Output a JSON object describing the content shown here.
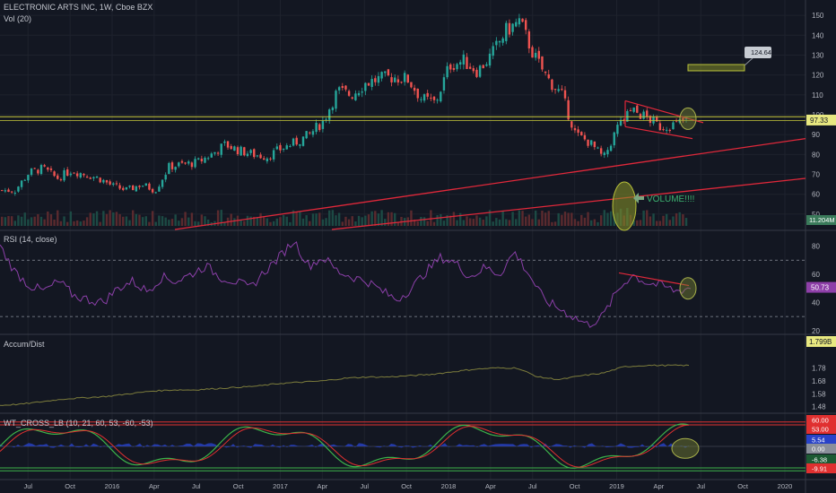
{
  "header": {
    "symbol_line": "ELECTRONIC ARTS INC, 1W, Cboe BZX",
    "volume_label": "Vol (20)"
  },
  "annotations": {
    "price_callout": "124.64",
    "volume_note": "VOLUME!!!!"
  },
  "panes": {
    "rsi_title": "RSI (14, close)",
    "ad_title": "Accum/Dist",
    "wt_title": "WT_CROSS_LB (10, 21, 60, 53, -60, -53)"
  },
  "colors": {
    "background": "#131722",
    "bull": "#26a69a",
    "bear": "#ef5350",
    "trendline": "#e0283a",
    "yellow_line": "#c8c83a",
    "rsi_line": "#8b3fa8",
    "ad_line": "#7d7d3c",
    "wt_green": "#3cb34a",
    "wt_red": "#e03030",
    "wt_blue": "#2842c8",
    "highlight": "#6f7a2f"
  },
  "chart_data": [
    {
      "type": "candlestick",
      "title": "ELECTRONIC ARTS INC, 1W, Cboe BZX",
      "ylim": [
        45,
        155
      ],
      "y_ticks": [
        150,
        140,
        130,
        120,
        110,
        100,
        90,
        80,
        70,
        60,
        50
      ],
      "last_price": "97.33",
      "volume_label_value": "11.204M",
      "x_ticks": [
        "Jul",
        "Oct",
        "2016",
        "Apr",
        "Jul",
        "Oct",
        "2017",
        "Apr",
        "Jul",
        "Oct",
        "2018",
        "Apr",
        "Jul",
        "Oct",
        "2019",
        "Apr",
        "Jul",
        "Oct",
        "2020"
      ],
      "close_series": [
        {
          "x": "2015-06",
          "y": 62
        },
        {
          "x": "2015-07",
          "y": 71
        },
        {
          "x": "2015-08",
          "y": 73
        },
        {
          "x": "2015-09",
          "y": 68
        },
        {
          "x": "2015-10",
          "y": 72
        },
        {
          "x": "2015-11",
          "y": 70
        },
        {
          "x": "2015-12",
          "y": 68
        },
        {
          "x": "2016-01",
          "y": 64
        },
        {
          "x": "2016-02",
          "y": 62
        },
        {
          "x": "2016-03",
          "y": 65
        },
        {
          "x": "2016-04",
          "y": 62
        },
        {
          "x": "2016-05",
          "y": 74
        },
        {
          "x": "2016-06",
          "y": 75
        },
        {
          "x": "2016-07",
          "y": 76
        },
        {
          "x": "2016-08",
          "y": 80
        },
        {
          "x": "2016-09",
          "y": 85
        },
        {
          "x": "2016-10",
          "y": 82
        },
        {
          "x": "2016-11",
          "y": 80
        },
        {
          "x": "2016-12",
          "y": 79
        },
        {
          "x": "2017-01",
          "y": 83
        },
        {
          "x": "2017-02",
          "y": 86
        },
        {
          "x": "2017-03",
          "y": 90
        },
        {
          "x": "2017-04",
          "y": 97
        },
        {
          "x": "2017-05",
          "y": 112
        },
        {
          "x": "2017-06",
          "y": 110
        },
        {
          "x": "2017-07",
          "y": 116
        },
        {
          "x": "2017-08",
          "y": 118
        },
        {
          "x": "2017-09",
          "y": 119
        },
        {
          "x": "2017-10",
          "y": 118
        },
        {
          "x": "2017-11",
          "y": 108
        },
        {
          "x": "2017-12",
          "y": 106
        },
        {
          "x": "2018-01",
          "y": 125
        },
        {
          "x": "2018-02",
          "y": 127
        },
        {
          "x": "2018-03",
          "y": 122
        },
        {
          "x": "2018-04",
          "y": 130
        },
        {
          "x": "2018-05",
          "y": 142
        },
        {
          "x": "2018-06",
          "y": 147
        },
        {
          "x": "2018-07",
          "y": 130
        },
        {
          "x": "2018-08",
          "y": 118
        },
        {
          "x": "2018-09",
          "y": 110
        },
        {
          "x": "2018-10",
          "y": 90
        },
        {
          "x": "2018-11",
          "y": 86
        },
        {
          "x": "2018-12",
          "y": 78
        },
        {
          "x": "2019-01",
          "y": 94
        },
        {
          "x": "2019-02",
          "y": 102
        },
        {
          "x": "2019-03",
          "y": 99
        },
        {
          "x": "2019-04",
          "y": 94
        },
        {
          "x": "2019-05",
          "y": 95
        },
        {
          "x": "2019-06",
          "y": 97.33
        }
      ]
    },
    {
      "type": "line",
      "title": "RSI (14, close)",
      "ylim": [
        18,
        88
      ],
      "y_ticks": [
        80,
        60,
        40,
        20
      ],
      "bands": [
        70,
        30
      ],
      "last_value": "50.73",
      "series": [
        {
          "values": [
            80,
            62,
            52,
            48,
            55,
            45,
            42,
            40,
            50,
            55,
            48,
            58,
            55,
            60,
            66,
            58,
            55,
            50,
            62,
            72,
            84,
            66,
            72,
            62,
            58,
            55,
            48,
            42,
            50,
            62,
            72,
            68,
            58,
            65,
            60,
            76,
            60,
            42,
            36,
            30,
            24,
            30,
            48,
            60,
            54,
            52,
            48,
            50.73
          ]
        }
      ]
    },
    {
      "type": "line",
      "title": "Accum/Dist",
      "ylim": [
        1.45,
        2.02
      ],
      "y_ticks": [
        "1.78",
        "1.68",
        "1.58",
        "1.48"
      ],
      "last_value": "1.799B",
      "series": [
        {
          "values": [
            1.49,
            1.5,
            1.52,
            1.54,
            1.55,
            1.56,
            1.58,
            1.6,
            1.61,
            1.61,
            1.62,
            1.63,
            1.64,
            1.66,
            1.67,
            1.68,
            1.7,
            1.71,
            1.71,
            1.72,
            1.73,
            1.75,
            1.77,
            1.78,
            1.78,
            1.71,
            1.69,
            1.72,
            1.74,
            1.79,
            1.8,
            1.8,
            1.8
          ]
        }
      ]
    },
    {
      "type": "line",
      "title": "WT_CROSS_LB (10, 21, 60, 53, -60, -53)",
      "ylim": [
        -75,
        75
      ],
      "levels": [
        60,
        53,
        -53,
        -60
      ],
      "value_labels": [
        "60.00",
        "53.00",
        "5.54",
        "0.00",
        "-6.38",
        "-9.91"
      ]
    }
  ]
}
